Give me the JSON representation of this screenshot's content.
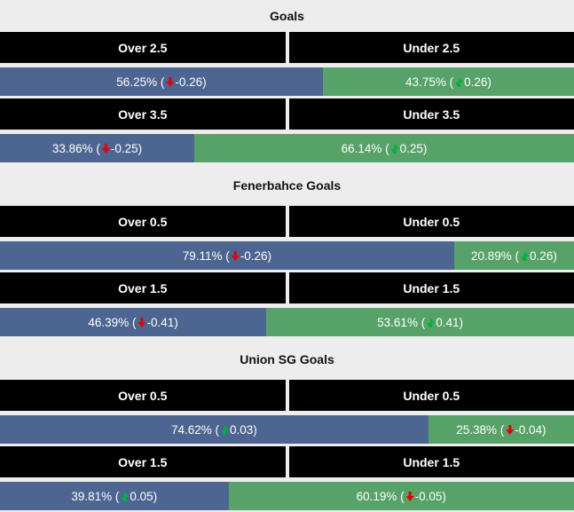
{
  "sections": [
    {
      "title": "Goals",
      "markets": [
        {
          "over_label": "Over 2.5",
          "under_label": "Under 2.5",
          "over": {
            "width_pct": 56.25,
            "text_before": "56.25% (",
            "trend": "down",
            "text_after": " -0.26)"
          },
          "under": {
            "width_pct": 43.75,
            "text_before": "43.75% (",
            "trend": "up",
            "text_after": " 0.26)"
          }
        },
        {
          "over_label": "Over 3.5",
          "under_label": "Under 3.5",
          "over": {
            "width_pct": 33.86,
            "text_before": "33.86% (",
            "trend": "down",
            "text_after": " -0.25)"
          },
          "under": {
            "width_pct": 66.14,
            "text_before": "66.14% (",
            "trend": "up",
            "text_after": " 0.25)"
          }
        }
      ]
    },
    {
      "title": "Fenerbahce Goals",
      "markets": [
        {
          "over_label": "Over 0.5",
          "under_label": "Under 0.5",
          "over": {
            "width_pct": 79.11,
            "text_before": "79.11% (",
            "trend": "down",
            "text_after": " -0.26)"
          },
          "under": {
            "width_pct": 20.89,
            "text_before": "20.89% (",
            "trend": "up",
            "text_after": " 0.26)"
          }
        },
        {
          "over_label": "Over 1.5",
          "under_label": "Under 1.5",
          "over": {
            "width_pct": 46.39,
            "text_before": "46.39% (",
            "trend": "down",
            "text_after": " -0.41)"
          },
          "under": {
            "width_pct": 53.61,
            "text_before": "53.61% (",
            "trend": "up",
            "text_after": " 0.41)"
          }
        }
      ]
    },
    {
      "title": "Union SG Goals",
      "markets": [
        {
          "over_label": "Over 0.5",
          "under_label": "Under 0.5",
          "over": {
            "width_pct": 74.62,
            "text_before": "74.62% (",
            "trend": "up",
            "text_after": " 0.03)"
          },
          "under": {
            "width_pct": 25.38,
            "text_before": "25.38% (",
            "trend": "down",
            "text_after": " -0.04)"
          }
        },
        {
          "over_label": "Over 1.5",
          "under_label": "Under 1.5",
          "over": {
            "width_pct": 39.81,
            "text_before": "39.81% (",
            "trend": "up",
            "text_after": " 0.05)"
          },
          "under": {
            "width_pct": 60.19,
            "text_before": "60.19% (",
            "trend": "down",
            "text_after": " -0.05)"
          }
        }
      ]
    }
  ],
  "colors": {
    "page_bg": "#ededed",
    "header_bg": "#000000",
    "header_text": "#ffffff",
    "over_bar": "#4d6591",
    "under_bar": "#57a269",
    "bar_text": "#ffffff",
    "trend_up": "#00b33c",
    "trend_down": "#e60000",
    "title_text": "#111111"
  },
  "chart_data": [
    {
      "type": "bar",
      "title": "Goals",
      "stacked_percent": true,
      "categories": [
        "2.5",
        "3.5"
      ],
      "series": [
        {
          "name": "Over",
          "values": [
            56.25,
            33.86
          ],
          "odds_change": [
            -0.26,
            -0.25
          ]
        },
        {
          "name": "Under",
          "values": [
            43.75,
            66.14
          ],
          "odds_change": [
            0.26,
            0.25
          ]
        }
      ]
    },
    {
      "type": "bar",
      "title": "Fenerbahce Goals",
      "stacked_percent": true,
      "categories": [
        "0.5",
        "1.5"
      ],
      "series": [
        {
          "name": "Over",
          "values": [
            79.11,
            46.39
          ],
          "odds_change": [
            -0.26,
            -0.41
          ]
        },
        {
          "name": "Under",
          "values": [
            20.89,
            53.61
          ],
          "odds_change": [
            0.26,
            0.41
          ]
        }
      ]
    },
    {
      "type": "bar",
      "title": "Union SG Goals",
      "stacked_percent": true,
      "categories": [
        "0.5",
        "1.5"
      ],
      "series": [
        {
          "name": "Over",
          "values": [
            74.62,
            39.81
          ],
          "odds_change": [
            0.03,
            0.05
          ]
        },
        {
          "name": "Under",
          "values": [
            25.38,
            60.19
          ],
          "odds_change": [
            -0.04,
            -0.05
          ]
        }
      ]
    }
  ]
}
